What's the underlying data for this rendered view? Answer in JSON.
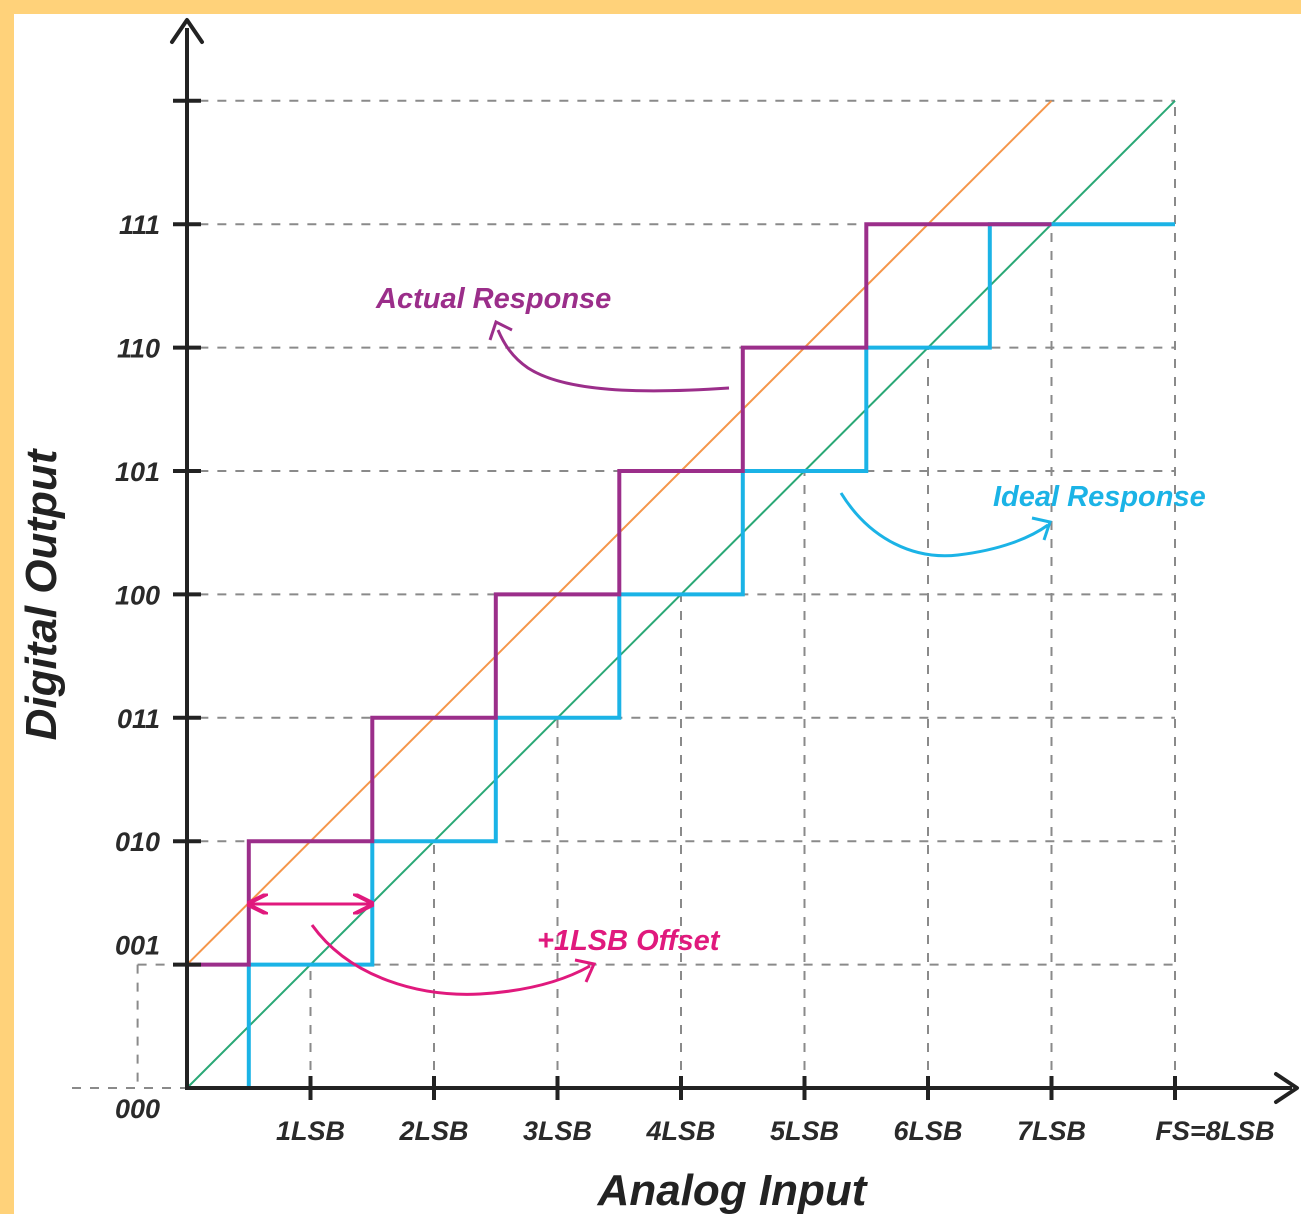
{
  "chart_data": {
    "type": "line",
    "title": "",
    "xlabel": "Analog Input",
    "ylabel": "Digital Output",
    "x_ticks": [
      "1LSB",
      "2LSB",
      "3LSB",
      "4LSB",
      "5LSB",
      "6LSB",
      "7LSB",
      "FS=8LSB"
    ],
    "x_tick_values": [
      1,
      2,
      3,
      4,
      5,
      6,
      7,
      8
    ],
    "y_ticks": [
      "000",
      "001",
      "010",
      "011",
      "100",
      "101",
      "110",
      "111"
    ],
    "y_tick_values": [
      0,
      1,
      2,
      3,
      4,
      5,
      6,
      7
    ],
    "xlim": [
      0,
      8
    ],
    "ylim": [
      0,
      8
    ],
    "grid": "dashed",
    "series": [
      {
        "name": "Ideal Response",
        "kind": "step",
        "color": "#1bb3e6",
        "points": [
          [
            0,
            0
          ],
          [
            0.5,
            0
          ],
          [
            0.5,
            1
          ],
          [
            1.5,
            1
          ],
          [
            1.5,
            2
          ],
          [
            2.5,
            2
          ],
          [
            2.5,
            3
          ],
          [
            3.5,
            3
          ],
          [
            3.5,
            4
          ],
          [
            4.5,
            4
          ],
          [
            4.5,
            5
          ],
          [
            5.5,
            5
          ],
          [
            5.5,
            6
          ],
          [
            6.5,
            6
          ],
          [
            6.5,
            7
          ],
          [
            8,
            7
          ]
        ]
      },
      {
        "name": "Actual Response",
        "kind": "step",
        "color": "#9b2e8a",
        "points": [
          [
            0,
            1
          ],
          [
            0.5,
            1
          ],
          [
            0.5,
            2
          ],
          [
            1.5,
            2
          ],
          [
            1.5,
            3
          ],
          [
            2.5,
            3
          ],
          [
            2.5,
            4
          ],
          [
            3.5,
            4
          ],
          [
            3.5,
            5
          ],
          [
            4.5,
            5
          ],
          [
            4.5,
            6
          ],
          [
            5.5,
            6
          ],
          [
            5.5,
            7
          ],
          [
            7,
            7
          ]
        ]
      },
      {
        "kind": "line",
        "color": "#2aa876",
        "points": [
          [
            0,
            0
          ],
          [
            8,
            8
          ]
        ]
      },
      {
        "kind": "line",
        "color": "#f5964a",
        "points": [
          [
            0,
            1
          ],
          [
            7,
            8
          ]
        ]
      }
    ],
    "annotations": [
      {
        "text": "Actual Response",
        "color": "#9b2e8a"
      },
      {
        "text": "Ideal Response",
        "color": "#1bb3e6"
      },
      {
        "text": "+1LSB Offset",
        "color": "#e0197d"
      }
    ]
  }
}
